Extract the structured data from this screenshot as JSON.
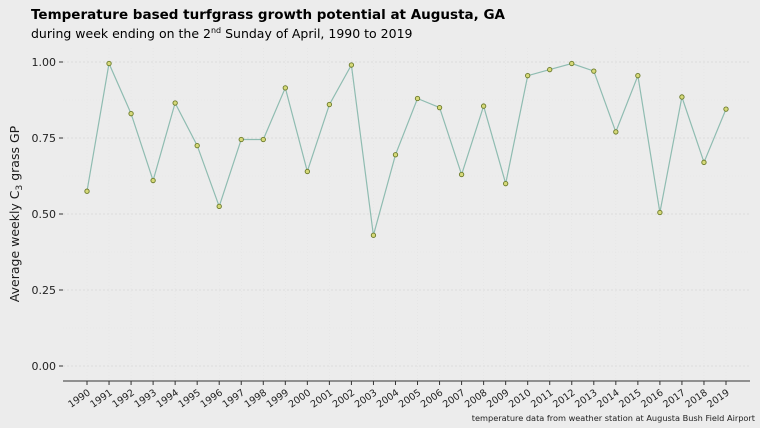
{
  "chart_data": {
    "type": "line",
    "title": "Temperature based turfgrass growth potential at Augusta, GA",
    "subtitle_prefix": "during week ending on the 2",
    "subtitle_sup": "nd",
    "subtitle_suffix": " Sunday of April, 1990 to 2019",
    "ylabel_prefix": "Average weekly C",
    "ylabel_sub": "3",
    "ylabel_suffix": " grass GP",
    "xlabel": "",
    "caption": "temperature data from weather station at Augusta Bush Field Airport",
    "ylim": [
      0,
      1
    ],
    "yticks": [
      "0.00",
      "0.25",
      "0.50",
      "0.75",
      "1.00"
    ],
    "ytick_values": [
      0,
      0.25,
      0.5,
      0.75,
      1.0
    ],
    "grid": true,
    "colors": {
      "line": "#8fbcb1",
      "point_fill": "#d6d979",
      "point_stroke": "#6b7a2a",
      "background": "#ececec"
    },
    "x": [
      "1990",
      "1991",
      "1992",
      "1993",
      "1994",
      "1995",
      "1996",
      "1997",
      "1998",
      "1999",
      "2000",
      "2001",
      "2002",
      "2003",
      "2004",
      "2005",
      "2006",
      "2007",
      "2008",
      "2009",
      "2010",
      "2011",
      "2012",
      "2013",
      "2014",
      "2015",
      "2016",
      "2017",
      "2018",
      "2019"
    ],
    "values": [
      0.575,
      0.995,
      0.83,
      0.61,
      0.865,
      0.725,
      0.525,
      0.745,
      0.745,
      0.915,
      0.64,
      0.86,
      0.99,
      0.43,
      0.695,
      0.88,
      0.85,
      0.63,
      0.855,
      0.6,
      0.955,
      0.975,
      0.995,
      0.97,
      0.77,
      0.955,
      0.505,
      0.885,
      0.67,
      0.845
    ]
  }
}
